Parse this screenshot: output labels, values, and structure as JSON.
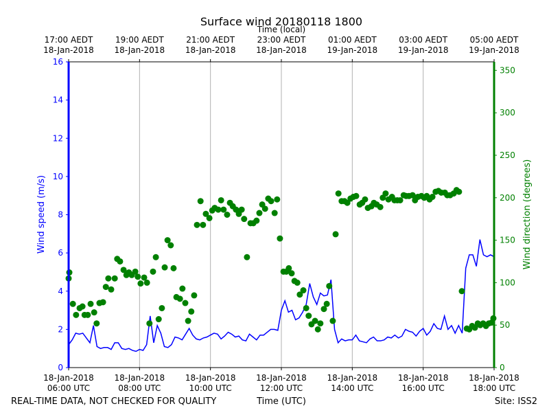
{
  "chart_data": {
    "type": "line-scatter",
    "title": "Surface wind 20180118 1800",
    "xlabel": "Time (UTC)",
    "x2label": "Time (local)",
    "ylabel": "Wind speed (m/s)",
    "y2label": "Wind direction (degrees)",
    "footer_left": "REAL-TIME DATA, NOT CHECKED FOR QUALITY",
    "footer_right": "Site: ISS2",
    "xlim": [
      6,
      18
    ],
    "xticks": [
      {
        "value": 6,
        "label": [
          "18-Jan-2018",
          "06:00 UTC"
        ]
      },
      {
        "value": 8,
        "label": [
          "18-Jan-2018",
          "08:00 UTC"
        ]
      },
      {
        "value": 10,
        "label": [
          "18-Jan-2018",
          "10:00 UTC"
        ]
      },
      {
        "value": 12,
        "label": [
          "18-Jan-2018",
          "12:00 UTC"
        ]
      },
      {
        "value": 14,
        "label": [
          "18-Jan-2018",
          "14:00 UTC"
        ]
      },
      {
        "value": 16,
        "label": [
          "18-Jan-2018",
          "16:00 UTC"
        ]
      },
      {
        "value": 18,
        "label": [
          "18-Jan-2018",
          "18:00 UTC"
        ]
      }
    ],
    "x2ticks": [
      {
        "value": 6,
        "label": [
          "17:00 AEDT",
          "18-Jan-2018"
        ]
      },
      {
        "value": 8,
        "label": [
          "19:00 AEDT",
          "18-Jan-2018"
        ]
      },
      {
        "value": 10,
        "label": [
          "21:00 AEDT",
          "18-Jan-2018"
        ]
      },
      {
        "value": 12,
        "label": [
          "23:00 AEDT",
          "18-Jan-2018"
        ]
      },
      {
        "value": 14,
        "label": [
          "01:00 AEDT",
          "19-Jan-2018"
        ]
      },
      {
        "value": 16,
        "label": [
          "03:00 AEDT",
          "19-Jan-2018"
        ]
      },
      {
        "value": 18,
        "label": [
          "05:00 AEDT",
          "19-Jan-2018"
        ]
      }
    ],
    "ylim": [
      0,
      16
    ],
    "yticks": [
      0,
      2,
      4,
      6,
      8,
      10,
      12,
      14,
      16
    ],
    "y2lim": [
      0,
      360
    ],
    "y2ticks": [
      0,
      50,
      100,
      150,
      200,
      250,
      300,
      350
    ],
    "grid": "x",
    "series": [
      {
        "name": "Wind speed",
        "kind": "line",
        "color": "#0000ff",
        "axis": "y",
        "x": [
          6.0,
          6.1,
          6.2,
          6.3,
          6.4,
          6.5,
          6.6,
          6.7,
          6.8,
          6.9,
          7.0,
          7.1,
          7.2,
          7.3,
          7.4,
          7.5,
          7.6,
          7.7,
          7.8,
          7.9,
          8.0,
          8.1,
          8.2,
          8.3,
          8.4,
          8.5,
          8.6,
          8.7,
          8.8,
          8.9,
          9.0,
          9.1,
          9.2,
          9.3,
          9.4,
          9.5,
          9.6,
          9.7,
          9.8,
          9.9,
          10.0,
          10.1,
          10.2,
          10.3,
          10.4,
          10.5,
          10.6,
          10.7,
          10.8,
          10.9,
          11.0,
          11.1,
          11.2,
          11.3,
          11.4,
          11.5,
          11.6,
          11.7,
          11.8,
          11.9,
          12.0,
          12.1,
          12.2,
          12.3,
          12.4,
          12.5,
          12.6,
          12.7,
          12.8,
          12.9,
          13.0,
          13.1,
          13.2,
          13.3,
          13.4,
          13.5,
          13.6,
          13.7,
          13.8,
          13.9,
          14.0,
          14.1,
          14.2,
          14.3,
          14.4,
          14.5,
          14.6,
          14.7,
          14.8,
          14.9,
          15.0,
          15.1,
          15.2,
          15.3,
          15.4,
          15.5,
          15.6,
          15.7,
          15.8,
          15.9,
          16.0,
          16.1,
          16.2,
          16.3,
          16.4,
          16.5,
          16.6,
          16.7,
          16.8,
          16.9,
          17.0,
          17.1,
          17.2,
          17.3,
          17.4,
          17.5,
          17.6,
          17.7,
          17.8,
          17.9,
          18.0
        ],
        "values": [
          1.2,
          1.45,
          1.8,
          1.75,
          1.8,
          1.55,
          1.3,
          2.2,
          1.1,
          1.0,
          1.05,
          1.05,
          0.95,
          1.3,
          1.3,
          1.0,
          0.95,
          1.0,
          0.9,
          0.85,
          0.95,
          0.9,
          1.2,
          2.7,
          1.3,
          2.2,
          1.8,
          1.1,
          1.05,
          1.2,
          1.6,
          1.55,
          1.45,
          1.75,
          2.05,
          1.7,
          1.5,
          1.45,
          1.55,
          1.6,
          1.7,
          1.8,
          1.75,
          1.5,
          1.65,
          1.85,
          1.75,
          1.6,
          1.65,
          1.45,
          1.4,
          1.75,
          1.6,
          1.45,
          1.7,
          1.7,
          1.85,
          2.0,
          2.0,
          1.95,
          3.0,
          3.5,
          2.9,
          3.0,
          2.5,
          2.6,
          2.9,
          3.3,
          4.4,
          3.7,
          3.3,
          3.9,
          3.75,
          3.8,
          4.6,
          2.0,
          1.3,
          1.5,
          1.4,
          1.45,
          1.45,
          1.7,
          1.4,
          1.35,
          1.3,
          1.5,
          1.6,
          1.4,
          1.4,
          1.45,
          1.6,
          1.55,
          1.7,
          1.55,
          1.65,
          2.0,
          1.9,
          1.85,
          1.65,
          1.9,
          2.05,
          1.7,
          1.9,
          2.3,
          2.05,
          2.0,
          2.7,
          2.0,
          2.2,
          1.8,
          2.2,
          1.8,
          5.2,
          5.9,
          5.9,
          5.3,
          6.7,
          5.9,
          5.8,
          5.9,
          5.8
        ]
      },
      {
        "name": "Wind direction",
        "kind": "scatter",
        "color": "#008000",
        "axis": "y2",
        "x": [
          6.0,
          6.02,
          6.12,
          6.21,
          6.31,
          6.39,
          6.45,
          6.54,
          6.62,
          6.72,
          6.79,
          6.87,
          6.97,
          7.05,
          7.12,
          7.2,
          7.3,
          7.37,
          7.45,
          7.55,
          7.63,
          7.7,
          7.78,
          7.88,
          7.95,
          8.03,
          8.13,
          8.21,
          8.28,
          8.38,
          8.46,
          8.54,
          8.63,
          8.71,
          8.79,
          8.88,
          8.96,
          9.04,
          9.14,
          9.21,
          9.29,
          9.37,
          9.46,
          9.54,
          9.62,
          9.72,
          9.79,
          9.87,
          9.97,
          10.05,
          10.12,
          10.22,
          10.3,
          10.37,
          10.47,
          10.55,
          10.63,
          10.72,
          10.8,
          10.88,
          10.95,
          11.03,
          11.13,
          11.21,
          11.3,
          11.38,
          11.46,
          11.54,
          11.63,
          11.71,
          11.81,
          11.88,
          11.96,
          12.06,
          12.14,
          12.21,
          12.29,
          12.37,
          12.45,
          12.52,
          12.62,
          12.7,
          12.77,
          12.85,
          12.95,
          13.03,
          13.1,
          13.2,
          13.28,
          13.35,
          13.45,
          13.53,
          13.61,
          13.7,
          13.78,
          13.86,
          13.95,
          14.03,
          14.11,
          14.21,
          14.28,
          14.36,
          14.44,
          14.54,
          14.61,
          14.69,
          14.79,
          14.86,
          14.94,
          15.02,
          15.12,
          15.19,
          15.27,
          15.35,
          15.45,
          15.52,
          15.6,
          15.7,
          15.77,
          15.85,
          15.95,
          16.03,
          16.1,
          16.18,
          16.26,
          16.35,
          16.43,
          16.51,
          16.61,
          16.68,
          16.76,
          16.86,
          16.94,
          17.01,
          17.09,
          17.23,
          17.3,
          17.38,
          17.46,
          17.54,
          17.61,
          17.69,
          17.77,
          17.85,
          17.93,
          17.98
        ],
        "values": [
          105,
          112,
          75,
          62,
          70,
          72,
          62,
          62,
          75,
          65,
          52,
          76,
          77,
          95,
          105,
          92,
          105,
          128,
          125,
          115,
          109,
          112,
          109,
          113,
          107,
          99,
          106,
          100,
          52,
          113,
          130,
          57,
          70,
          118,
          150,
          144,
          117,
          83,
          81,
          93,
          76,
          55,
          66,
          85,
          168,
          196,
          168,
          181,
          176,
          185,
          188,
          186,
          197,
          186,
          180,
          194,
          190,
          186,
          181,
          186,
          175,
          130,
          170,
          170,
          173,
          182,
          192,
          187,
          199,
          196,
          182,
          198,
          152,
          113,
          113,
          117,
          111,
          102,
          100,
          86,
          91,
          70,
          61,
          51,
          55,
          45,
          52,
          69,
          75,
          96,
          55,
          157,
          205,
          196,
          196,
          194,
          199,
          201,
          202,
          192,
          194,
          198,
          188,
          190,
          194,
          192,
          189,
          200,
          205,
          198,
          201,
          197,
          197,
          197,
          203,
          202,
          202,
          203,
          197,
          201,
          202,
          200,
          202,
          198,
          201,
          207,
          208,
          206,
          206,
          203,
          203,
          205,
          209,
          207,
          90,
          46,
          45,
          49,
          47,
          52,
          50,
          52,
          49,
          52,
          53,
          58
        ]
      }
    ]
  }
}
